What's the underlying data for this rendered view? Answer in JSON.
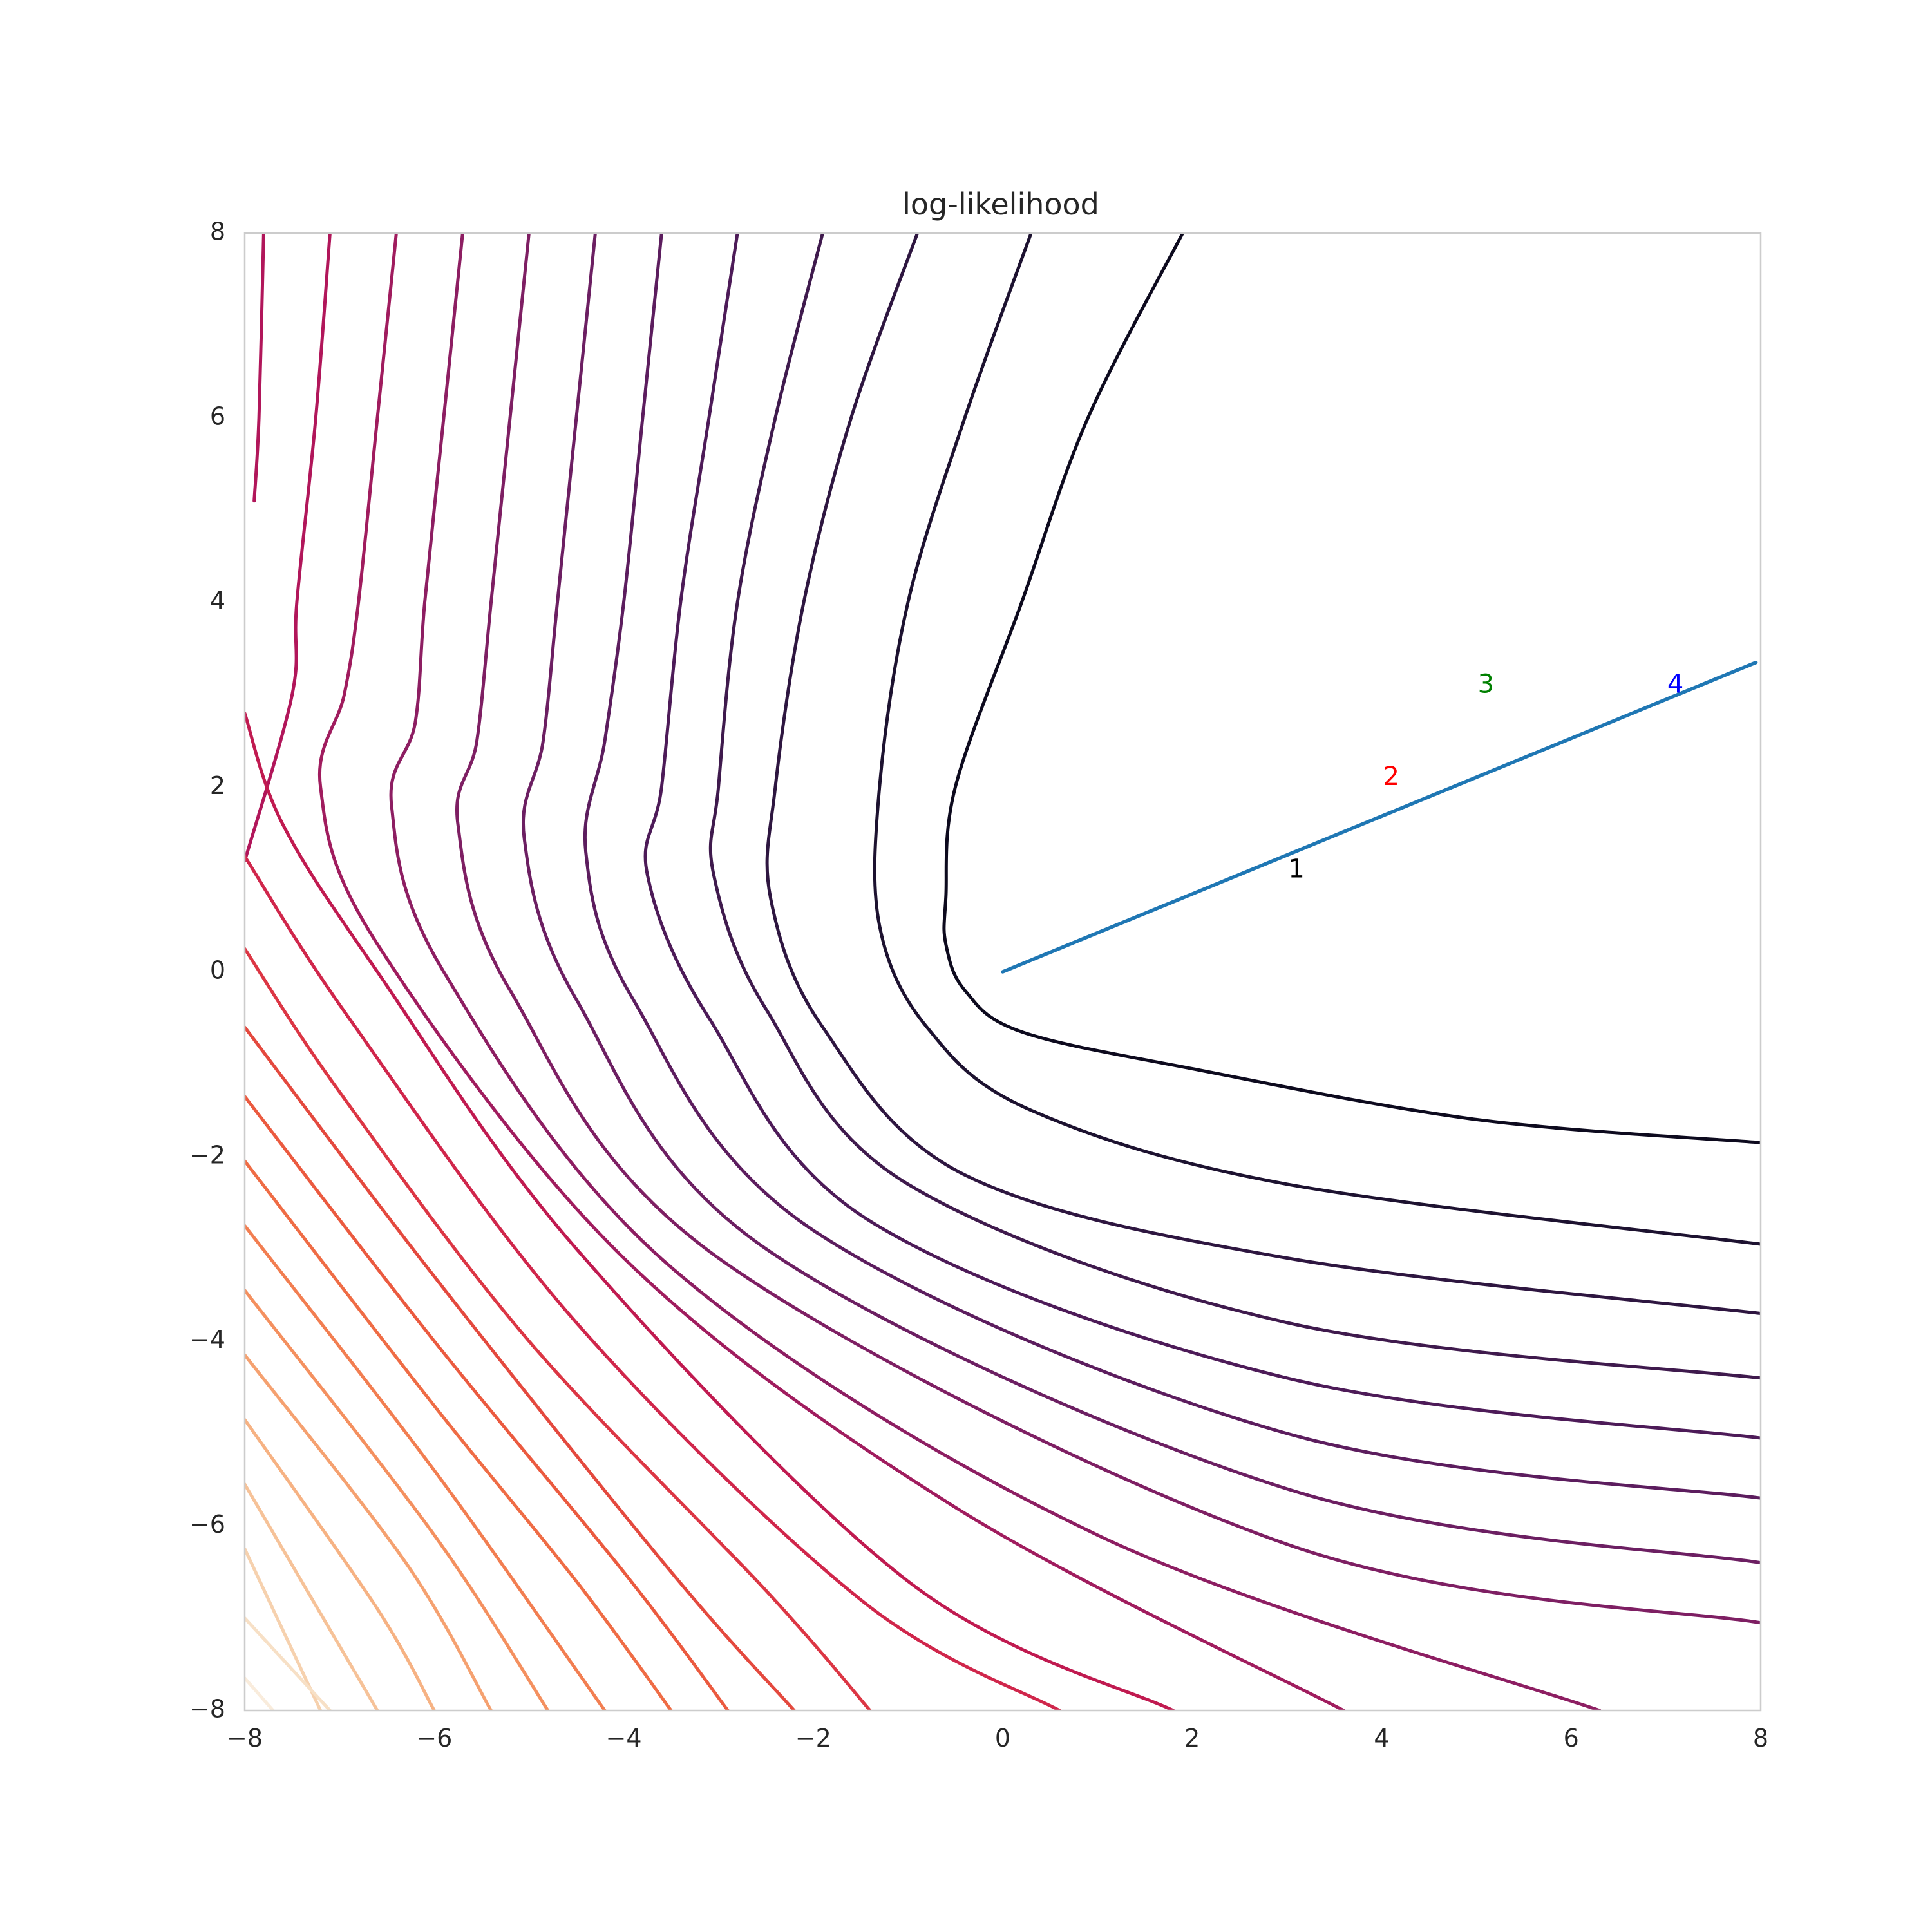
{
  "chart_data": {
    "type": "contour",
    "title": "log-likelihood",
    "xlabel": "",
    "ylabel": "",
    "xlim": [
      -8,
      8
    ],
    "ylim": [
      -8,
      8
    ],
    "xticks": [
      -8,
      -6,
      -4,
      -2,
      0,
      2,
      4,
      6,
      8
    ],
    "yticks": [
      -8,
      -6,
      -4,
      -2,
      0,
      2,
      4,
      6,
      8
    ],
    "xtick_labels": [
      "−8",
      "−6",
      "−4",
      "−2",
      "0",
      "2",
      "4",
      "6",
      "8"
    ],
    "ytick_labels": [
      "−8",
      "−6",
      "−4",
      "−2",
      "0",
      "2",
      "4",
      "6",
      "8"
    ],
    "grid": false,
    "colormap": "rocket",
    "contour_lines": [
      {
        "color": "#0d0a1e",
        "points": [
          [
            1.9,
            8
          ],
          [
            0.9,
            6
          ],
          [
            0.2,
            4
          ],
          [
            -0.5,
            2
          ],
          [
            -0.6,
            0.8
          ],
          [
            -0.6,
            0.3
          ],
          [
            -0.4,
            -0.2
          ],
          [
            0.2,
            -0.65
          ],
          [
            2,
            -1.05
          ],
          [
            5,
            -1.6
          ],
          [
            8,
            -1.85
          ]
        ]
      },
      {
        "color": "#1d1230",
        "points": [
          [
            0.3,
            8
          ],
          [
            -0.4,
            6
          ],
          [
            -1,
            4
          ],
          [
            -1.3,
            2
          ],
          [
            -1.3,
            0.5
          ],
          [
            -0.8,
            -0.6
          ],
          [
            0.3,
            -1.5
          ],
          [
            3,
            -2.3
          ],
          [
            8,
            -2.95
          ]
        ]
      },
      {
        "color": "#2e1640",
        "points": [
          [
            -0.9,
            8
          ],
          [
            -1.6,
            6
          ],
          [
            -2.1,
            4
          ],
          [
            -2.4,
            2
          ],
          [
            -2.45,
            0.8
          ],
          [
            -1.9,
            -0.6
          ],
          [
            -0.4,
            -2.2
          ],
          [
            3,
            -3.1
          ],
          [
            8,
            -3.7
          ]
        ]
      },
      {
        "color": "#3f1a4d",
        "points": [
          [
            -1.9,
            8
          ],
          [
            -2.4,
            6
          ],
          [
            -2.8,
            4
          ],
          [
            -3,
            2
          ],
          [
            -3.05,
            1.05
          ],
          [
            -2.5,
            -0.4
          ],
          [
            -1,
            -2.3
          ],
          [
            3,
            -3.8
          ],
          [
            8,
            -4.4
          ]
        ]
      },
      {
        "color": "#4d1b58",
        "points": [
          [
            -2.8,
            8
          ],
          [
            -3.1,
            6
          ],
          [
            -3.4,
            4
          ],
          [
            -3.6,
            2
          ],
          [
            -3.75,
            1.05
          ],
          [
            -3.1,
            -0.5
          ],
          [
            -1.4,
            -2.7
          ],
          [
            3,
            -4.4
          ],
          [
            8,
            -5.05
          ]
        ]
      },
      {
        "color": "#5c1d5e",
        "points": [
          [
            -3.6,
            8
          ],
          [
            -3.8,
            6
          ],
          [
            -4,
            4
          ],
          [
            -4.2,
            2.5
          ],
          [
            -4.4,
            1.3
          ],
          [
            -3.9,
            -0.3
          ],
          [
            -2,
            -2.8
          ],
          [
            3,
            -5
          ],
          [
            8,
            -5.7
          ]
        ]
      },
      {
        "color": "#6c1f62",
        "points": [
          [
            -4.3,
            8
          ],
          [
            -4.5,
            6
          ],
          [
            -4.7,
            4
          ],
          [
            -4.85,
            2.5
          ],
          [
            -5.05,
            1.45
          ],
          [
            -4.5,
            -0.3
          ],
          [
            -2.5,
            -3
          ],
          [
            3,
            -5.6
          ],
          [
            8,
            -6.4
          ]
        ]
      },
      {
        "color": "#7e1f63",
        "points": [
          [
            -5,
            8
          ],
          [
            -5.2,
            6
          ],
          [
            -5.4,
            4
          ],
          [
            -5.55,
            2.5
          ],
          [
            -5.75,
            1.6
          ],
          [
            -5.2,
            -0.2
          ],
          [
            -3,
            -3.1
          ],
          [
            3,
            -6.2
          ],
          [
            8,
            -7.05
          ]
        ]
      },
      {
        "color": "#8d1e62",
        "points": [
          [
            -5.7,
            8
          ],
          [
            -5.9,
            6
          ],
          [
            -6.1,
            4
          ],
          [
            -6.2,
            2.7
          ],
          [
            -6.45,
            1.8
          ],
          [
            -5.9,
            0
          ],
          [
            -3.5,
            -3.2
          ],
          [
            1,
            -6.1
          ],
          [
            6.3,
            -8
          ]
        ]
      },
      {
        "color": "#a01c5e",
        "points": [
          [
            -6.4,
            8
          ],
          [
            -6.6,
            6
          ],
          [
            -6.8,
            4
          ],
          [
            -6.95,
            3
          ],
          [
            -7.2,
            2
          ],
          [
            -6.6,
            0.3
          ],
          [
            -4,
            -3.1
          ],
          [
            -0.5,
            -5.8
          ],
          [
            3.6,
            -8
          ]
        ]
      },
      {
        "color": "#b1165a",
        "points": [
          [
            -7.1,
            8
          ],
          [
            -7.25,
            6
          ],
          [
            -7.45,
            4
          ],
          [
            -7.5,
            3
          ],
          [
            -8,
            1.2
          ]
        ]
      },
      {
        "color": "#b1165a",
        "points": [
          [
            -7.9,
            5.1
          ],
          [
            -7.85,
            6
          ],
          [
            -7.8,
            8
          ]
        ]
      },
      {
        "color": "#c01a50",
        "points": [
          [
            -8,
            2.8
          ],
          [
            -7.6,
            1.6
          ],
          [
            -6.6,
            0
          ],
          [
            -4.5,
            -3
          ],
          [
            -1,
            -6.6
          ],
          [
            1.8,
            -8
          ]
        ]
      },
      {
        "color": "#d0264b",
        "points": [
          [
            -8,
            1.25
          ],
          [
            -6.9,
            -0.5
          ],
          [
            -4.5,
            -3.8
          ],
          [
            -1.5,
            -6.8
          ],
          [
            0.6,
            -8
          ]
        ]
      },
      {
        "color": "#dc3644",
        "points": [
          [
            -8,
            0.25
          ],
          [
            -7,
            -1.3
          ],
          [
            -5,
            -4
          ],
          [
            -2.5,
            -6.7
          ],
          [
            -1.4,
            -8
          ]
        ]
      },
      {
        "color": "#e4493e",
        "points": [
          [
            -8,
            -0.6
          ],
          [
            -6,
            -3.3
          ],
          [
            -3.5,
            -6.5
          ],
          [
            -2.2,
            -8
          ]
        ]
      },
      {
        "color": "#eb5a3f",
        "points": [
          [
            -8,
            -1.35
          ],
          [
            -6,
            -4
          ],
          [
            -4,
            -6.5
          ],
          [
            -2.9,
            -8
          ]
        ]
      },
      {
        "color": "#ef6c45",
        "points": [
          [
            -8,
            -2.05
          ],
          [
            -6,
            -4.7
          ],
          [
            -4.5,
            -6.6
          ],
          [
            -3.5,
            -8
          ]
        ]
      },
      {
        "color": "#f27e51",
        "points": [
          [
            -8,
            -2.75
          ],
          [
            -6,
            -5.4
          ],
          [
            -4.2,
            -8
          ]
        ]
      },
      {
        "color": "#f4905f",
        "points": [
          [
            -8,
            -3.45
          ],
          [
            -6,
            -6.1
          ],
          [
            -4.8,
            -8
          ]
        ]
      },
      {
        "color": "#f5a170",
        "points": [
          [
            -8,
            -4.15
          ],
          [
            -6.3,
            -6.4
          ],
          [
            -5.4,
            -8
          ]
        ]
      },
      {
        "color": "#f6b283",
        "points": [
          [
            -8,
            -4.85
          ],
          [
            -6.6,
            -6.9
          ],
          [
            -6,
            -8
          ]
        ]
      },
      {
        "color": "#f6c298",
        "points": [
          [
            -8,
            -5.55
          ],
          [
            -6.6,
            -8
          ]
        ]
      },
      {
        "color": "#f6d1ae",
        "points": [
          [
            -8,
            -6.25
          ],
          [
            -7.2,
            -8
          ]
        ]
      },
      {
        "color": "#f7e0c6",
        "points": [
          [
            -8,
            -7
          ],
          [
            -7.1,
            -8
          ]
        ]
      },
      {
        "color": "#f9ecdc",
        "points": [
          [
            -8,
            -7.65
          ],
          [
            -7.7,
            -8
          ]
        ]
      }
    ],
    "series": [
      {
        "type": "line",
        "color": "#1f77b4",
        "x": [
          0,
          7.95
        ],
        "y": [
          0,
          3.35
        ]
      }
    ],
    "annotations": [
      {
        "text": "1",
        "x": 3.1,
        "y": 1.1,
        "color": "#000000"
      },
      {
        "text": "2",
        "x": 4.1,
        "y": 2.1,
        "color": "#ff0000"
      },
      {
        "text": "3",
        "x": 5.1,
        "y": 3.1,
        "color": "#008000"
      },
      {
        "text": "4",
        "x": 7.1,
        "y": 3.1,
        "color": "#0000ff"
      }
    ]
  }
}
